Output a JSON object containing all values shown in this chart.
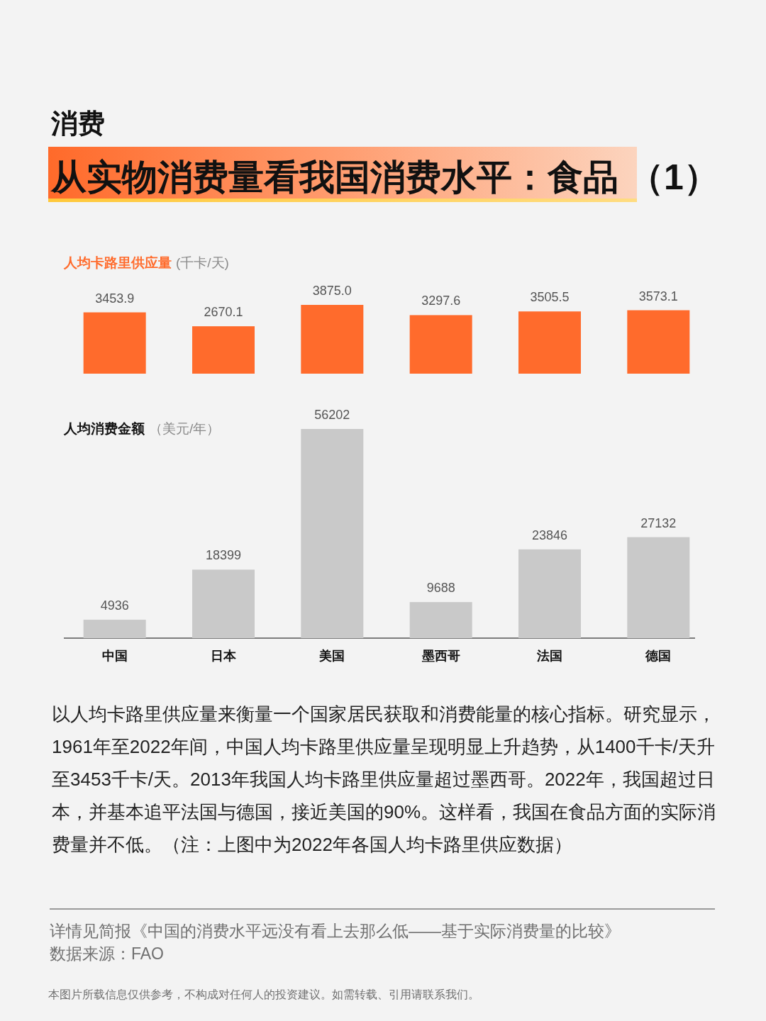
{
  "chart_data": [
    {
      "type": "other",
      "subtitle": "消费",
      "title": "从实物消费量看我国消费水平：食品 （1）"
    },
    {
      "type": "bar",
      "title": "人均卡路里供应量",
      "subtitle": "(千卡/天)",
      "categories": [
        null,
        null,
        null,
        null,
        null,
        null
      ],
      "values": [
        3453.9,
        2670.1,
        3875.0,
        3297.6,
        3505.5,
        3573.1
      ],
      "value_labels": [
        "3453.9",
        "2670.1",
        "3875.0",
        "3297.6",
        "3505.5",
        "3573.1"
      ],
      "color": "#ff6b2c",
      "tick_labels": false
    },
    {
      "type": "bar",
      "title": "人均消费金额",
      "subtitle": "（美元/年）",
      "categories": [
        "中国",
        "日本",
        "美国",
        "墨西哥",
        "法国",
        "德国"
      ],
      "values": [
        4936,
        18399,
        56202,
        9688,
        23846,
        27132
      ],
      "data_labels": true,
      "color": "#c9c9c9",
      "tick_labels": "x"
    },
    {
      "type": "other",
      "annotations": [
        "以人均卡路里供应量来衡量一个国家居民获取和消费能量的核心指标。研究显示，1961年至2022年间，中国人均卡路里供应量呈现明显上升趋势，从1400千卡/天升至3453千卡/天。2013年我国人均卡路里供应量超过墨西哥。2022年，我国超过日本，并基本追平法国与德国，接近美国的90%。这样看，我国在食品方面的实际消费量并不低。（注：上图中为2022年各国人均卡路里供应数据）",
        "详情见简报《中国的消费水平远没有看上去那么低——基于实际消费量的比较》",
        "数据来源：FAO",
        "本图片所载信息仅供参考，不构成对任何人的投资建议。如需转载、引用请联系我们。"
      ]
    }
  ]
}
